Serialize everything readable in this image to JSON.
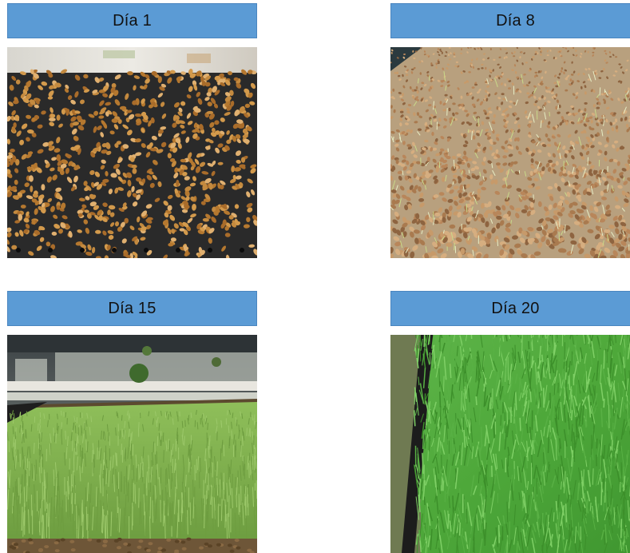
{
  "panels": [
    {
      "label": "Día 1",
      "photo": "wheat-seeds-tray"
    },
    {
      "label": "Día 8",
      "photo": "sprouting-wheat-seeds"
    },
    {
      "label": "Día 15",
      "photo": "young-wheatgrass-greenhouse"
    },
    {
      "label": "Día 20",
      "photo": "mature-wheatgrass-tray"
    }
  ]
}
